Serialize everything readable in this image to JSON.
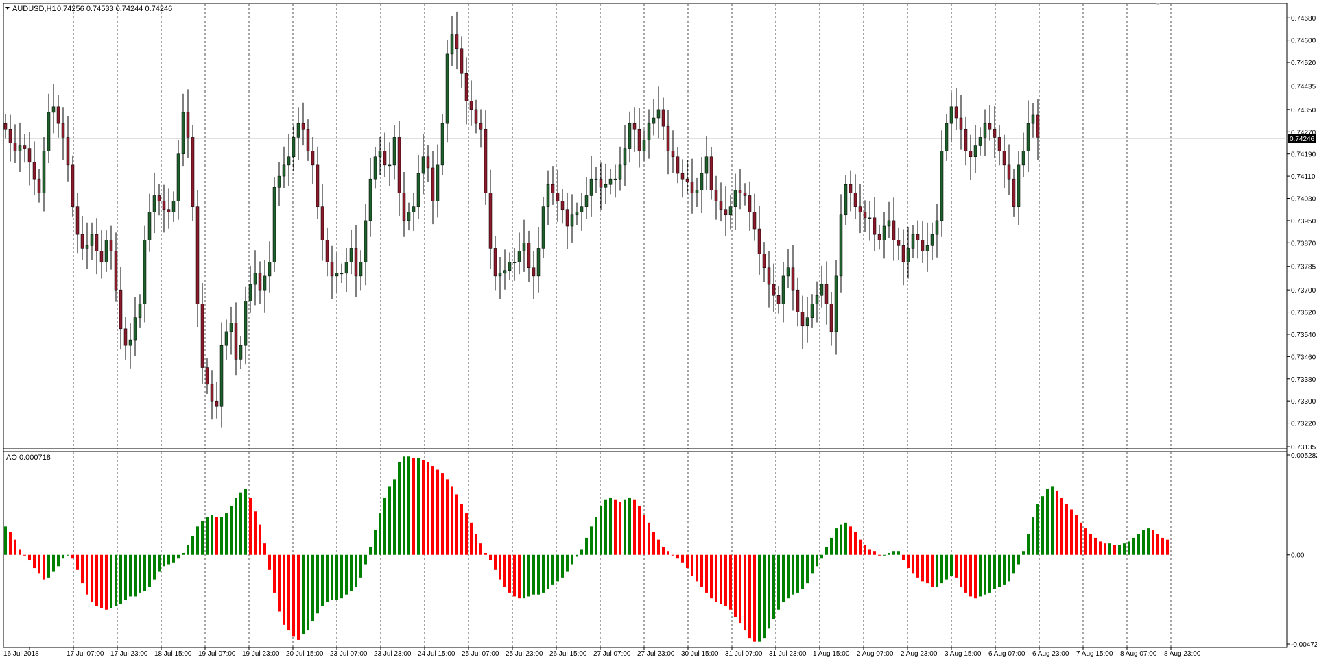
{
  "header": {
    "symbol": "AUDUSD,H1",
    "ohlc": "0.74256 0.74533 0.74244 0.74246",
    "indicator_label": "AO 0.000718"
  },
  "colors": {
    "bull_candle": "#1e5f2b",
    "bear_candle": "#8b1a2b",
    "ao_up": "#008000",
    "ao_down": "#ff0000",
    "grid": "#000000",
    "price_line": "#c0c0c0",
    "price_tag_bg": "#000000"
  },
  "current_price": "0.74246",
  "chart_data": [
    {
      "type": "candlestick",
      "title": "AUDUSD,H1",
      "ylim": [
        0.73135,
        0.74725
      ],
      "y_ticks": [
        "0.74680",
        "0.74600",
        "0.74520",
        "0.74435",
        "0.74350",
        "0.74270",
        "0.74190",
        "0.74110",
        "0.74030",
        "0.73950",
        "0.73870",
        "0.73785",
        "0.73700",
        "0.73620",
        "0.73540",
        "0.73460",
        "0.73380",
        "0.73300",
        "0.73220",
        "0.73135"
      ],
      "close_series": [
        0.7428,
        0.7423,
        0.742,
        0.7422,
        0.7421,
        0.7416,
        0.741,
        0.7405,
        0.742,
        0.7434,
        0.7436,
        0.743,
        0.7425,
        0.7415,
        0.74,
        0.739,
        0.7385,
        0.7386,
        0.739,
        0.7384,
        0.738,
        0.7388,
        0.7384,
        0.737,
        0.7356,
        0.735,
        0.7352,
        0.736,
        0.7365,
        0.7388,
        0.7398,
        0.7404,
        0.7402,
        0.7399,
        0.7398,
        0.7402,
        0.7419,
        0.7434,
        0.7425,
        0.74,
        0.7365,
        0.7342,
        0.7336,
        0.733,
        0.7328,
        0.735,
        0.7355,
        0.7358,
        0.7345,
        0.735,
        0.7366,
        0.7372,
        0.7376,
        0.737,
        0.7375,
        0.738,
        0.7407,
        0.7411,
        0.7415,
        0.7418,
        0.7425,
        0.743,
        0.7428,
        0.742,
        0.7415,
        0.74,
        0.7388,
        0.738,
        0.7375,
        0.7376,
        0.7376,
        0.738,
        0.7385,
        0.7375,
        0.738,
        0.7395,
        0.741,
        0.7418,
        0.742,
        0.7415,
        0.7415,
        0.7425,
        0.7405,
        0.7395,
        0.7398,
        0.74,
        0.7412,
        0.7418,
        0.7414,
        0.7402,
        0.7415,
        0.743,
        0.7455,
        0.7462,
        0.7457,
        0.7448,
        0.7438,
        0.7435,
        0.743,
        0.7428,
        0.7405,
        0.7385,
        0.7375,
        0.7376,
        0.7377,
        0.738,
        0.738,
        0.7384,
        0.7387,
        0.7378,
        0.7375,
        0.7385,
        0.74,
        0.7408,
        0.7405,
        0.7402,
        0.7399,
        0.7393,
        0.7397,
        0.7398,
        0.74,
        0.7404,
        0.741,
        0.741,
        0.7407,
        0.7408,
        0.741,
        0.741,
        0.7415,
        0.7421,
        0.743,
        0.7428,
        0.742,
        0.7424,
        0.743,
        0.7432,
        0.7435,
        0.7429,
        0.742,
        0.7418,
        0.7412,
        0.741,
        0.7409,
        0.7405,
        0.7406,
        0.7412,
        0.7418,
        0.7406,
        0.7402,
        0.7399,
        0.7397,
        0.74,
        0.7406,
        0.7405,
        0.7404,
        0.7398,
        0.7392,
        0.7383,
        0.7378,
        0.7372,
        0.7368,
        0.7365,
        0.7375,
        0.7378,
        0.737,
        0.7362,
        0.7357,
        0.736,
        0.7365,
        0.7368,
        0.7372,
        0.7365,
        0.7355,
        0.7375,
        0.7397,
        0.7408,
        0.7405,
        0.74,
        0.7398,
        0.7396,
        0.7396,
        0.739,
        0.7388,
        0.7393,
        0.7395,
        0.7388,
        0.7386,
        0.738,
        0.7385,
        0.739,
        0.7388,
        0.7384,
        0.7386,
        0.739,
        0.7395,
        0.742,
        0.743,
        0.7436,
        0.7432,
        0.7428,
        0.742,
        0.7418,
        0.7422,
        0.7425,
        0.743,
        0.7428,
        0.7425,
        0.742,
        0.7415,
        0.741,
        0.74,
        0.7415,
        0.742,
        0.743,
        0.7433,
        0.7425
      ],
      "x_labels": [
        "16 Jul 2018",
        "17 Jul 07:00",
        "17 Jul 23:00",
        "18 Jul 15:00",
        "19 Jul 07:00",
        "19 Jul 23:00",
        "20 Jul 15:00",
        "23 Jul 07:00",
        "23 Jul 23:00",
        "24 Jul 15:00",
        "25 Jul 07:00",
        "25 Jul 23:00",
        "26 Jul 15:00",
        "27 Jul 07:00",
        "27 Jul 23:00",
        "30 Jul 15:00",
        "31 Jul 07:00",
        "31 Jul 23:00",
        "1 Aug 15:00",
        "2 Aug 07:00",
        "2 Aug 23:00",
        "3 Aug 15:00",
        "6 Aug 07:00",
        "6 Aug 23:00",
        "7 Aug 15:00",
        "8 Aug 07:00",
        "8 Aug 23:00"
      ]
    },
    {
      "type": "bar",
      "title": "AO 0.000718",
      "ylim": [
        -0.004721,
        0.005282
      ],
      "y_ticks": [
        "0.005282",
        "0.00",
        "-0.004721"
      ],
      "values": [
        0.0015,
        0.0012,
        0.0008,
        0.0003,
        0.0,
        -0.0003,
        -0.0007,
        -0.001,
        -0.0013,
        -0.0012,
        -0.0009,
        -0.0006,
        -0.0002,
        0.0,
        -0.0002,
        -0.0008,
        -0.0015,
        -0.0021,
        -0.0025,
        -0.0027,
        -0.0028,
        -0.0029,
        -0.0028,
        -0.0027,
        -0.0026,
        -0.0024,
        -0.0022,
        -0.0022,
        -0.002,
        -0.0019,
        -0.0017,
        -0.0013,
        -0.0009,
        -0.0006,
        -0.0005,
        -0.0004,
        -0.0002,
        0.0001,
        0.0005,
        0.001,
        0.0015,
        0.0018,
        0.002,
        0.0021,
        0.002,
        0.002,
        0.0022,
        0.0026,
        0.003,
        0.0033,
        0.0035,
        0.003,
        0.0023,
        0.0016,
        0.0006,
        -0.0008,
        -0.002,
        -0.003,
        -0.0037,
        -0.004,
        -0.0043,
        -0.0045,
        -0.0042,
        -0.004,
        -0.0035,
        -0.0031,
        -0.0027,
        -0.0025,
        -0.0024,
        -0.0024,
        -0.0023,
        -0.0021,
        -0.0019,
        -0.0017,
        -0.0012,
        -0.0005,
        0.0004,
        0.0013,
        0.0022,
        0.003,
        0.0036,
        0.004,
        0.0049,
        0.0052,
        0.0052,
        0.0051,
        0.0051,
        0.005,
        0.0049,
        0.0047,
        0.0045,
        0.0043,
        0.004,
        0.0036,
        0.0032,
        0.0027,
        0.0022,
        0.0017,
        0.0011,
        0.0006,
        0.0001,
        -0.0003,
        -0.0008,
        -0.0013,
        -0.0017,
        -0.002,
        -0.0022,
        -0.0023,
        -0.0023,
        -0.0022,
        -0.0021,
        -0.0021,
        -0.002,
        -0.0018,
        -0.0016,
        -0.0014,
        -0.0012,
        -0.0009,
        -0.0005,
        -0.0001,
        0.0003,
        0.0009,
        0.0015,
        0.002,
        0.0026,
        0.0029,
        0.003,
        0.0029,
        0.0028,
        0.0029,
        0.003,
        0.0029,
        0.0026,
        0.0021,
        0.0017,
        0.0012,
        0.0008,
        0.0004,
        0.0002,
        0.0,
        -0.0002,
        -0.0004,
        -0.0007,
        -0.0011,
        -0.0014,
        -0.0017,
        -0.002,
        -0.0023,
        -0.0025,
        -0.0026,
        -0.0027,
        -0.0029,
        -0.0033,
        -0.0036,
        -0.004,
        -0.0044,
        -0.0046,
        -0.0046,
        -0.0044,
        -0.0039,
        -0.0034,
        -0.0029,
        -0.0025,
        -0.0023,
        -0.0021,
        -0.002,
        -0.0018,
        -0.0015,
        -0.001,
        -0.0006,
        -0.0002,
        0.0004,
        0.0009,
        0.0014,
        0.0016,
        0.0017,
        0.0015,
        0.0012,
        0.0008,
        0.0005,
        0.0003,
        0.0002,
        0.0,
        0.0,
        0.0001,
        0.0002,
        0.0002,
        -0.0003,
        -0.0007,
        -0.001,
        -0.0012,
        -0.0014,
        -0.0015,
        -0.0017,
        -0.0017,
        -0.0015,
        -0.0013,
        -0.0011,
        -0.0012,
        -0.0017,
        -0.002,
        -0.0022,
        -0.0023,
        -0.0022,
        -0.0021,
        -0.002,
        -0.0018,
        -0.0017,
        -0.0016,
        -0.0014,
        -0.001,
        -0.0005,
        0.0002,
        0.0011,
        0.002,
        0.0027,
        0.0031,
        0.0035,
        0.0036,
        0.0034,
        0.003,
        0.0027,
        0.0024,
        0.0021,
        0.0017,
        0.0014,
        0.0011,
        0.0009,
        0.0007,
        0.0006,
        0.0006,
        0.0005,
        0.0005,
        0.0006,
        0.0007,
        0.0009,
        0.0011,
        0.0013,
        0.0014,
        0.0013,
        0.0011,
        0.0009,
        0.0008
      ]
    }
  ]
}
